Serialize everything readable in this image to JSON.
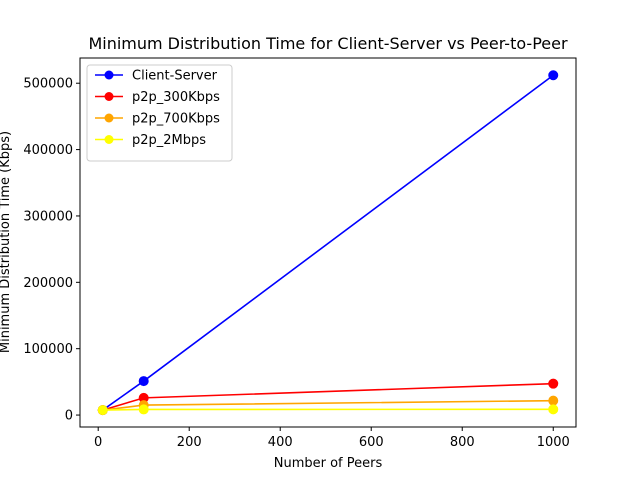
{
  "chart_data": {
    "type": "line",
    "title": "Minimum Distribution Time for Client-Server vs Peer-to-Peer",
    "xlabel": "Number of Peers",
    "ylabel": "Minimum Distribution Time (Kbps)",
    "x": [
      10,
      100,
      1000
    ],
    "xlim": [
      -40,
      1050
    ],
    "ylim": [
      -18000,
      538000
    ],
    "xticks": [
      0,
      200,
      400,
      600,
      800,
      1000
    ],
    "yticks": [
      0,
      100000,
      200000,
      300000,
      400000,
      500000
    ],
    "grid": false,
    "legend_position": "top-left",
    "series": [
      {
        "name": "Client-Server",
        "color": "#0000ff",
        "values": [
          7500,
          51200,
          512000
        ]
      },
      {
        "name": "p2p_300Kbps",
        "color": "#ff0000",
        "values": [
          7500,
          25900,
          47300
        ]
      },
      {
        "name": "p2p_700Kbps",
        "color": "#ffa500",
        "values": [
          7500,
          15000,
          21700
        ]
      },
      {
        "name": "p2p_2Mbps",
        "color": "#ffff00",
        "values": [
          7500,
          8500,
          8600
        ]
      }
    ]
  }
}
